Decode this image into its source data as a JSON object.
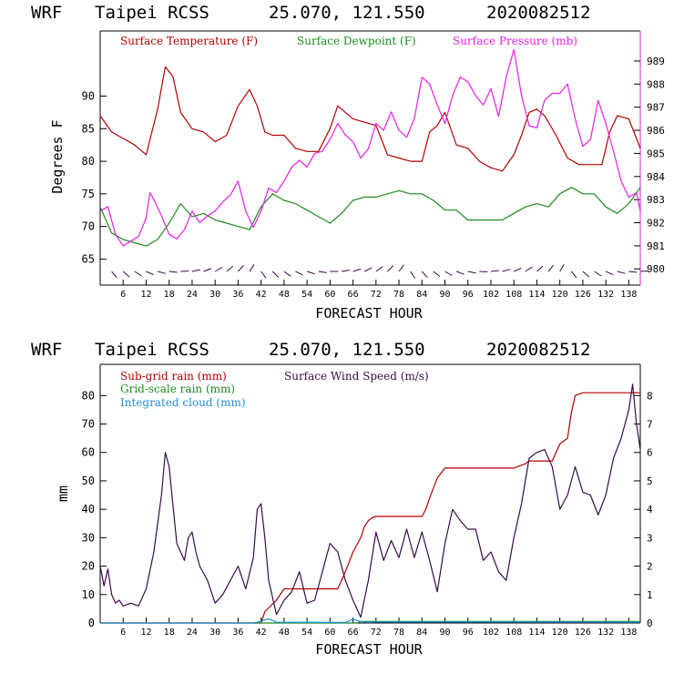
{
  "colors": {
    "temperature": "#b30000",
    "dewpoint": "#1e8a1e",
    "pressure": "#e81ee8",
    "subgrid_rain": "#b30000",
    "grid_rain": "#1e8a1e",
    "cloud": "#1e90d8",
    "wind": "#3a0a4a",
    "frame_right": "#e81ee8"
  },
  "chart_data": [
    {
      "type": "line",
      "header": {
        "model": "WRF",
        "station": "Taipei RCSS",
        "coords": "25.070, 121.550",
        "init": "2020082512"
      },
      "xlabel": "FORECAST HOUR",
      "ylabel": "Degrees F",
      "xlim": [
        0,
        141
      ],
      "x_ticks": [
        6,
        12,
        18,
        24,
        30,
        36,
        42,
        48,
        54,
        60,
        66,
        72,
        78,
        84,
        90,
        96,
        102,
        108,
        114,
        120,
        126,
        132,
        138
      ],
      "ylim_left": [
        61,
        100
      ],
      "y_ticks_left": [
        65,
        70,
        75,
        80,
        85,
        90
      ],
      "ylim_right": [
        979.3,
        990.3
      ],
      "y_ticks_right": [
        980,
        981,
        982,
        983,
        984,
        985,
        986,
        987,
        988,
        989
      ],
      "legend": [
        "Surface Temperature (F)",
        "Surface Dewpoint (F)",
        "Surface Pressure (mb)"
      ],
      "series": [
        {
          "name": "Surface Temperature (F)",
          "axis": "left",
          "x": [
            0,
            3,
            6,
            9,
            12,
            15,
            17,
            19,
            21,
            24,
            27,
            30,
            33,
            36,
            39,
            41,
            43,
            45,
            48,
            51,
            54,
            57,
            60,
            62,
            64,
            66,
            69,
            72,
            75,
            78,
            81,
            84,
            86,
            88,
            90,
            93,
            96,
            99,
            102,
            105,
            108,
            110,
            112,
            114,
            116,
            119,
            122,
            125,
            128,
            131,
            133,
            135,
            138,
            141
          ],
          "y": [
            87,
            84.5,
            83.5,
            82.5,
            81,
            88,
            94.5,
            93,
            87.5,
            85,
            84.5,
            83,
            84,
            88.5,
            91,
            88.5,
            84.5,
            84,
            84,
            82,
            81.5,
            81.5,
            85,
            88.5,
            87.5,
            86.5,
            86,
            85.5,
            81,
            80.5,
            80,
            80,
            84.5,
            85.5,
            87.5,
            82.5,
            82,
            80,
            79,
            78.5,
            81,
            84,
            87.5,
            88,
            87,
            84,
            80.5,
            79.5,
            79.5,
            79.5,
            84.5,
            87,
            86.5,
            82
          ]
        },
        {
          "name": "Surface Dewpoint (F)",
          "axis": "left",
          "x": [
            0,
            3,
            6,
            9,
            12,
            15,
            18,
            21,
            24,
            27,
            30,
            33,
            36,
            39,
            42,
            45,
            48,
            51,
            54,
            57,
            60,
            63,
            66,
            69,
            72,
            75,
            78,
            81,
            84,
            87,
            90,
            93,
            96,
            99,
            102,
            105,
            108,
            111,
            114,
            117,
            120,
            123,
            126,
            129,
            132,
            135,
            138,
            141
          ],
          "y": [
            73,
            69,
            68,
            67.5,
            67,
            68,
            70.5,
            73.5,
            71.5,
            72,
            71,
            70.5,
            70,
            69.5,
            73,
            75,
            74,
            73.5,
            72.5,
            71.5,
            70.5,
            72,
            74,
            74.5,
            74.5,
            75,
            75.5,
            75,
            75,
            74,
            72.5,
            72.5,
            71,
            71,
            71,
            71,
            72,
            73,
            73.5,
            73,
            75,
            76,
            75,
            75,
            73,
            72,
            73.5,
            76
          ]
        },
        {
          "name": "Surface Pressure (mb)",
          "axis": "right",
          "x": [
            0,
            2,
            4,
            6,
            8,
            10,
            12,
            13,
            14,
            16,
            18,
            20,
            22,
            24,
            26,
            28,
            30,
            32,
            34,
            36,
            38,
            40,
            42,
            44,
            46,
            48,
            50,
            52,
            54,
            56,
            58,
            60,
            62,
            64,
            66,
            68,
            70,
            72,
            74,
            76,
            78,
            80,
            82,
            84,
            86,
            88,
            90,
            92,
            94,
            96,
            98,
            100,
            102,
            104,
            106,
            108,
            110,
            112,
            114,
            116,
            118,
            120,
            122,
            124,
            126,
            128,
            130,
            132,
            134,
            136,
            138,
            140,
            141
          ],
          "y": [
            982.5,
            982.7,
            981.5,
            981,
            981.2,
            981.4,
            982.2,
            983.3,
            983,
            982.3,
            981.5,
            981.3,
            981.7,
            982.5,
            982,
            982.3,
            982.5,
            982.9,
            983.2,
            983.8,
            982.5,
            981.8,
            982.5,
            983.5,
            983.3,
            983.8,
            984.4,
            984.7,
            984.4,
            985,
            985.1,
            985.6,
            986.3,
            985.8,
            985.5,
            984.8,
            985.2,
            986.3,
            986,
            986.8,
            986,
            985.7,
            986.5,
            988.3,
            988,
            987.1,
            986.3,
            987.5,
            988.3,
            988.1,
            987.5,
            987.1,
            987.8,
            986.6,
            988.3,
            989.5,
            987.5,
            986.2,
            986.1,
            987.3,
            987.6,
            987.6,
            988,
            986.5,
            985.3,
            985.6,
            987.3,
            986.3,
            985.1,
            983.8,
            983.1,
            983.3,
            982.5
          ]
        }
      ]
    },
    {
      "type": "line",
      "header": {
        "model": "WRF",
        "station": "Taipei RCSS",
        "coords": "25.070, 121.550",
        "init": "2020082512"
      },
      "xlabel": "FORECAST HOUR",
      "ylabel": "mm",
      "xlim": [
        0,
        141
      ],
      "x_ticks": [
        6,
        12,
        18,
        24,
        30,
        36,
        42,
        48,
        54,
        60,
        66,
        72,
        78,
        84,
        90,
        96,
        102,
        108,
        114,
        120,
        126,
        132,
        138
      ],
      "ylim_left": [
        0,
        91
      ],
      "y_ticks_left": [
        0,
        10,
        20,
        30,
        40,
        50,
        60,
        70,
        80
      ],
      "ylim_right": [
        0,
        9.1
      ],
      "y_ticks_right": [
        0,
        1,
        2,
        3,
        4,
        5,
        6,
        7,
        8
      ],
      "legend": [
        "Sub-grid rain (mm)",
        "Grid-scale rain (mm)",
        "Integrated cloud (mm)",
        "Surface Wind Speed (m/s)"
      ],
      "series": [
        {
          "name": "Sub-grid rain (mm)",
          "axis": "left",
          "x": [
            0,
            42,
            43,
            46,
            48,
            51,
            54,
            60,
            62,
            64,
            66,
            68,
            69,
            70,
            71,
            72,
            84,
            85,
            86,
            88,
            90,
            108,
            111,
            112,
            118,
            120,
            122,
            123,
            124,
            126,
            141
          ],
          "y": [
            0,
            0,
            4,
            8,
            12,
            12,
            12,
            12,
            12,
            18,
            25,
            30,
            34,
            36,
            37,
            37.5,
            37.5,
            40,
            44,
            51,
            54.5,
            54.5,
            56,
            57,
            57,
            63,
            65,
            74,
            80,
            81,
            81
          ]
        },
        {
          "name": "Grid-scale rain (mm)",
          "axis": "left",
          "x": [
            0,
            67,
            68,
            141
          ],
          "y": [
            0,
            0,
            0.5,
            0.5
          ]
        },
        {
          "name": "Integrated cloud (mm)",
          "axis": "left",
          "x": [
            0,
            40,
            42,
            44,
            46,
            64,
            66,
            68,
            70,
            72,
            141
          ],
          "y": [
            0,
            0,
            0.6,
            1.5,
            0.3,
            0.2,
            1.3,
            0.5,
            0.2,
            0.4,
            0.3
          ]
        },
        {
          "name": "Surface Wind Speed (m/s)",
          "axis": "right",
          "x": [
            0,
            1,
            2,
            3,
            4,
            5,
            6,
            8,
            10,
            12,
            14,
            16,
            17,
            18,
            20,
            22,
            23,
            24,
            25,
            26,
            28,
            30,
            32,
            34,
            36,
            38,
            40,
            41,
            42,
            43,
            44,
            46,
            48,
            50,
            52,
            54,
            56,
            58,
            60,
            62,
            64,
            66,
            68,
            70,
            72,
            74,
            76,
            78,
            80,
            82,
            84,
            86,
            88,
            90,
            92,
            94,
            96,
            98,
            100,
            102,
            104,
            106,
            108,
            110,
            112,
            114,
            116,
            118,
            120,
            122,
            124,
            126,
            128,
            130,
            132,
            134,
            136,
            138,
            139,
            140,
            141
          ],
          "y": [
            2,
            1.3,
            1.9,
            1,
            0.7,
            0.8,
            0.6,
            0.7,
            0.6,
            1.2,
            2.5,
            4.5,
            6,
            5.5,
            2.8,
            2.2,
            3,
            3.2,
            2.5,
            2,
            1.5,
            0.7,
            1,
            1.5,
            2,
            1.2,
            2.3,
            4,
            4.2,
            3,
            1.5,
            0.3,
            0.8,
            1.1,
            1.8,
            0.7,
            0.8,
            1.8,
            2.8,
            2.5,
            1.5,
            0.8,
            0.2,
            1.5,
            3.2,
            2.2,
            2.9,
            2.3,
            3.3,
            2.3,
            3.2,
            2.2,
            1.1,
            2.8,
            4,
            3.6,
            3.3,
            3.3,
            2.2,
            2.5,
            1.8,
            1.5,
            3,
            4.2,
            5.8,
            6,
            6.1,
            5.5,
            4,
            4.5,
            5.5,
            4.6,
            4.5,
            3.8,
            4.5,
            5.8,
            6.5,
            7.5,
            8.4,
            7,
            6.1
          ]
        }
      ]
    }
  ]
}
